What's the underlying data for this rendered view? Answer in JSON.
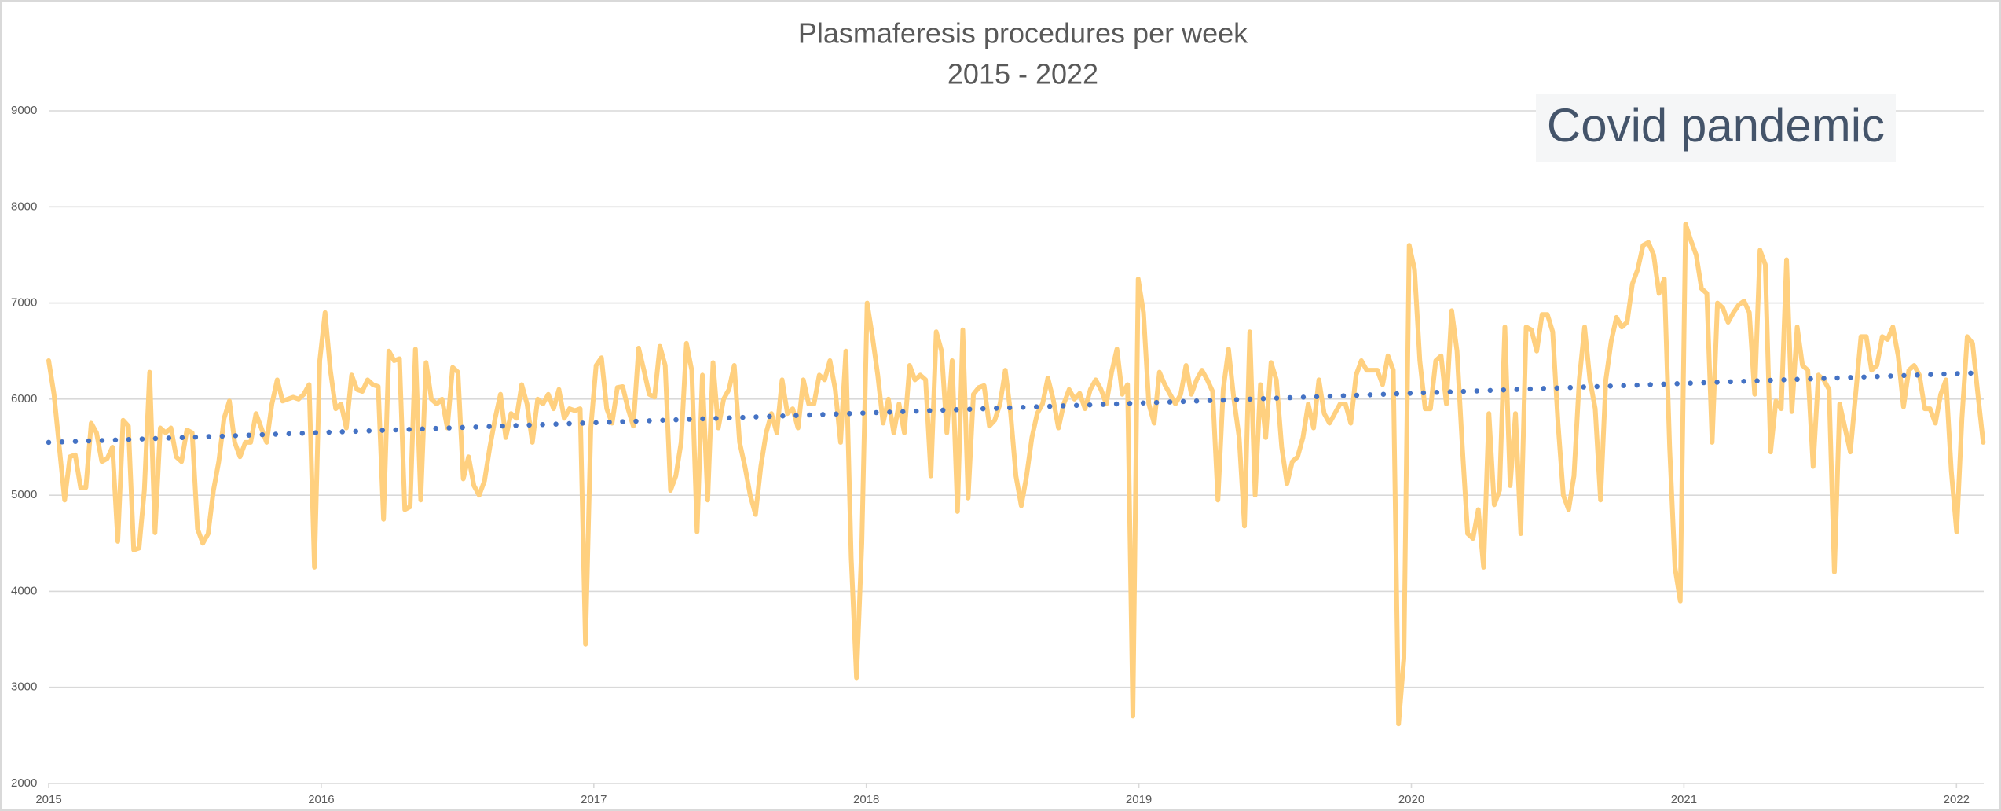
{
  "chart_data": {
    "type": "line",
    "title": "Plasmaferesis procedures per week",
    "subtitle": "2015 - 2022",
    "annotation": "Covid pandemic",
    "xlim": [
      2015,
      2022.1
    ],
    "xticks": [
      2015,
      2016,
      2017,
      2018,
      2019,
      2020,
      2021,
      2022
    ],
    "ylim": [
      2000,
      9000
    ],
    "yticks": [
      2000,
      3000,
      4000,
      5000,
      6000,
      7000,
      8000,
      9000
    ],
    "grid": true,
    "series": [
      {
        "color": "#ffd07f",
        "x": [
          2015,
          2015.0195,
          2015.039,
          2015.0585,
          2015.078,
          2015.0975,
          2015.117,
          2015.1365,
          2015.156,
          2015.1755,
          2015.195,
          2015.2145,
          2015.234,
          2015.2535,
          2015.273,
          2015.2925,
          2015.312,
          2015.3315,
          2015.351,
          2015.3705,
          2015.39,
          2015.4095,
          2015.429,
          2015.4485,
          2015.468,
          2015.4875,
          2015.507,
          2015.5265,
          2015.546,
          2015.5655,
          2015.585,
          2015.6045,
          2015.624,
          2015.6435,
          2015.663,
          2015.6825,
          2015.702,
          2015.7215,
          2015.741,
          2015.7605,
          2015.78,
          2015.7995,
          2015.819,
          2015.8385,
          2015.858,
          2015.8775,
          2015.897,
          2015.9165,
          2015.936,
          2015.9555,
          2015.975,
          2015.9945,
          2016.014,
          2016.0335,
          2016.053,
          2016.0725,
          2016.092,
          2016.1115,
          2016.131,
          2016.1505,
          2016.17,
          2016.1895,
          2016.209,
          2016.2285,
          2016.248,
          2016.2675,
          2016.287,
          2016.3065,
          2016.326,
          2016.3455,
          2016.365,
          2016.3845,
          2016.404,
          2016.4235,
          2016.443,
          2016.4625,
          2016.482,
          2016.5015,
          2016.521,
          2016.5405,
          2016.56,
          2016.5795,
          2016.599,
          2016.6185,
          2016.638,
          2016.6575,
          2016.677,
          2016.6965,
          2016.716,
          2016.7355,
          2016.755,
          2016.7745,
          2016.794,
          2016.8135,
          2016.833,
          2016.8525,
          2016.872,
          2016.8915,
          2016.911,
          2016.9305,
          2016.95,
          2016.9695,
          2016.989,
          2017.0085,
          2017.028,
          2017.0475,
          2017.067,
          2017.0865,
          2017.106,
          2017.1255,
          2017.145,
          2017.1645,
          2017.184,
          2017.2035,
          2017.223,
          2017.2425,
          2017.262,
          2017.2815,
          2017.301,
          2017.3205,
          2017.34,
          2017.3595,
          2017.379,
          2017.3985,
          2017.418,
          2017.4375,
          2017.457,
          2017.4765,
          2017.496,
          2017.5155,
          2017.535,
          2017.5545,
          2017.574,
          2017.5935,
          2017.613,
          2017.6325,
          2017.652,
          2017.6715,
          2017.691,
          2017.7105,
          2017.73,
          2017.7495,
          2017.769,
          2017.7885,
          2017.808,
          2017.8275,
          2017.847,
          2017.8665,
          2017.886,
          2017.9055,
          2017.925,
          2017.9445,
          2017.964,
          2017.9835,
          2018.003,
          2018.0225,
          2018.042,
          2018.0615,
          2018.081,
          2018.1005,
          2018.12,
          2018.1395,
          2018.159,
          2018.1785,
          2018.198,
          2018.2175,
          2018.237,
          2018.2565,
          2018.276,
          2018.2955,
          2018.315,
          2018.3345,
          2018.354,
          2018.3735,
          2018.393,
          2018.4125,
          2018.432,
          2018.4515,
          2018.471,
          2018.4905,
          2018.51,
          2018.5295,
          2018.549,
          2018.5685,
          2018.588,
          2018.6075,
          2018.627,
          2018.6465,
          2018.666,
          2018.6855,
          2018.705,
          2018.7245,
          2018.744,
          2018.7635,
          2018.783,
          2018.8025,
          2018.822,
          2018.8415,
          2018.861,
          2018.8805,
          2018.9,
          2018.9195,
          2018.939,
          2018.9585,
          2018.978,
          2018.9975,
          2019.017,
          2019.0365,
          2019.056,
          2019.0755,
          2019.095,
          2019.1145,
          2019.134,
          2019.1535,
          2019.173,
          2019.1925,
          2019.212,
          2019.2315,
          2019.251,
          2019.2705,
          2019.29,
          2019.3095,
          2019.329,
          2019.3485,
          2019.368,
          2019.3875,
          2019.407,
          2019.4265,
          2019.446,
          2019.4655,
          2019.485,
          2019.5045,
          2019.524,
          2019.5435,
          2019.563,
          2019.5825,
          2019.602,
          2019.6215,
          2019.641,
          2019.6605,
          2019.68,
          2019.6995,
          2019.719,
          2019.7385,
          2019.758,
          2019.7775,
          2019.797,
          2019.8165,
          2019.836,
          2019.8555,
          2019.875,
          2019.8945,
          2019.914,
          2019.9335,
          2019.953,
          2019.9725,
          2019.992,
          2020.0115,
          2020.031,
          2020.0505,
          2020.07,
          2020.0895,
          2020.109,
          2020.1285,
          2020.148,
          2020.1675,
          2020.187,
          2020.2065,
          2020.226,
          2020.2455,
          2020.265,
          2020.2845,
          2020.304,
          2020.3235,
          2020.343,
          2020.3625,
          2020.382,
          2020.4015,
          2020.421,
          2020.4405,
          2020.46,
          2020.4795,
          2020.499,
          2020.5185,
          2020.538,
          2020.5575,
          2020.577,
          2020.5965,
          2020.616,
          2020.6355,
          2020.655,
          2020.6745,
          2020.694,
          2020.7135,
          2020.733,
          2020.7525,
          2020.772,
          2020.7915,
          2020.811,
          2020.8305,
          2020.85,
          2020.8695,
          2020.889,
          2020.9085,
          2020.928,
          2020.9475,
          2020.967,
          2020.9865,
          2021.006,
          2021.0255,
          2021.045,
          2021.0645,
          2021.084,
          2021.1035,
          2021.123,
          2021.1425,
          2021.162,
          2021.1815,
          2021.201,
          2021.2205,
          2021.24,
          2021.2595,
          2021.279,
          2021.2985,
          2021.318,
          2021.3375,
          2021.357,
          2021.3765,
          2021.396,
          2021.4155,
          2021.435,
          2021.4545,
          2021.474,
          2021.4935,
          2021.513,
          2021.5325,
          2021.552,
          2021.5715,
          2021.591,
          2021.6105,
          2021.63,
          2021.6495,
          2021.669,
          2021.6885,
          2021.708,
          2021.7275,
          2021.747,
          2021.7665,
          2021.786,
          2021.8055,
          2021.825,
          2021.8445,
          2021.864,
          2021.8835,
          2021.903,
          2021.9225,
          2021.942,
          2021.9615,
          2021.981,
          2022.0005,
          2022.02,
          2022.0395,
          2022.059,
          2022.0785,
          2022.098
        ],
        "values": [
          6400,
          6050,
          5500,
          4950,
          5400,
          5420,
          5080,
          5080,
          5750,
          5650,
          5350,
          5380,
          5500,
          4520,
          5780,
          5720,
          4430,
          4450,
          5050,
          6280,
          4610,
          5700,
          5650,
          5700,
          5400,
          5350,
          5680,
          5650,
          4650,
          4500,
          4600,
          5050,
          5350,
          5800,
          5980,
          5550,
          5400,
          5550,
          5550,
          5850,
          5700,
          5550,
          5950,
          6200,
          5980,
          6000,
          6020,
          6000,
          6050,
          6150,
          4250,
          6400,
          6900,
          6300,
          5900,
          5950,
          5700,
          6250,
          6100,
          6080,
          6200,
          6150,
          6130,
          4750,
          6500,
          6400,
          6420,
          4850,
          4880,
          6520,
          4950,
          6380,
          6000,
          5950,
          6000,
          5700,
          6330,
          6280,
          5170,
          5400,
          5100,
          5000,
          5150,
          5500,
          5800,
          6050,
          5600,
          5850,
          5800,
          6150,
          5950,
          5550,
          6000,
          5950,
          6050,
          5900,
          6100,
          5800,
          5900,
          5880,
          5900,
          3450,
          5700,
          6350,
          6430,
          5900,
          5750,
          6120,
          6130,
          5900,
          5720,
          6530,
          6300,
          6050,
          6020,
          6550,
          6350,
          5050,
          5200,
          5550,
          6580,
          6300,
          4620,
          6250,
          4950,
          6380,
          5700,
          6000,
          6100,
          6350,
          5550,
          5300,
          5000,
          4800,
          5300,
          5650,
          5850,
          5650,
          6200,
          5850,
          5900,
          5700,
          6200,
          5950,
          5950,
          6250,
          6200,
          6400,
          6100,
          5550,
          6500,
          4350,
          3100,
          4500,
          7000,
          6650,
          6250,
          5750,
          6000,
          5650,
          5950,
          5650,
          6350,
          6200,
          6250,
          6200,
          5200,
          6700,
          6500,
          5650,
          6400,
          4830,
          6720,
          4970,
          6050,
          6120,
          6140,
          5720,
          5780,
          5950,
          6300,
          5850,
          5200,
          4890,
          5200,
          5600,
          5850,
          5950,
          6220,
          6000,
          5700,
          5950,
          6100,
          6000,
          6060,
          5900,
          6100,
          6200,
          6100,
          5950,
          6280,
          6520,
          6050,
          6150,
          2700,
          7250,
          6900,
          5950,
          5750,
          6280,
          6150,
          6050,
          5950,
          6050,
          6350,
          6050,
          6200,
          6300,
          6200,
          6080,
          4950,
          6100,
          6520,
          6000,
          5600,
          4680,
          6700,
          5000,
          6150,
          5600,
          6380,
          6200,
          5500,
          5120,
          5350,
          5400,
          5600,
          5950,
          5700,
          6200,
          5850,
          5750,
          5850,
          5950,
          5950,
          5750,
          6250,
          6400,
          6300,
          6300,
          6300,
          6150,
          6450,
          6300,
          2620,
          3300,
          7600,
          7350,
          6400,
          5900,
          5900,
          6400,
          6450,
          5950,
          6920,
          6500,
          5500,
          4600,
          4550,
          4850,
          4250,
          5850,
          4900,
          5050,
          6750,
          5100,
          5850,
          4600,
          6750,
          6720,
          6500,
          6880,
          6880,
          6700,
          5750,
          5000,
          4850,
          5200,
          6200,
          6750,
          6200,
          5900,
          4950,
          6200,
          6600,
          6850,
          6750,
          6800,
          7200,
          7350,
          7600,
          7630,
          7500,
          7100,
          7250,
          5500,
          4250,
          3900,
          7820,
          7650,
          7500,
          7150,
          7100,
          5550,
          7000,
          6950,
          6800,
          6900,
          6980,
          7020,
          6900,
          6050,
          7550,
          7400,
          5450,
          5980,
          5900,
          7450,
          5870,
          6750,
          6350,
          6300,
          5300,
          6250,
          6200,
          6100,
          4200,
          5950,
          5700,
          5450,
          6050,
          6650,
          6650,
          6300,
          6350,
          6650,
          6620,
          6750,
          6450,
          5920,
          6300,
          6350,
          6250,
          5900,
          5900,
          5750,
          6050,
          6200,
          5250,
          4620,
          5800,
          6650,
          6580,
          6050,
          5550
        ]
      },
      {
        "color": "#4472c4",
        "style": "dotted",
        "x": [
          2015,
          2022.1
        ],
        "values": [
          5550,
          6275
        ]
      }
    ]
  }
}
